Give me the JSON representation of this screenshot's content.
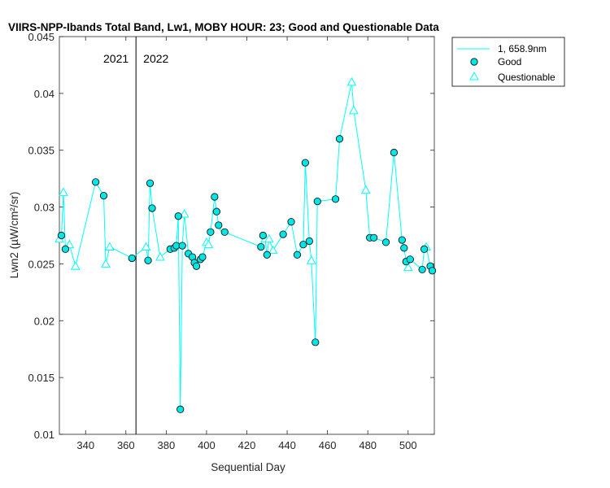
{
  "chart_data": {
    "type": "scatter",
    "title": "VIIRS-NPP-Ibands Total Band, Lw1, MOBY HOUR: 23;  Good and Questionable Data",
    "xlabel": "Sequential Day",
    "ylabel": "Lwn2 (µW/cm²/sr)",
    "xlim": [
      327,
      513
    ],
    "ylim": [
      0.01,
      0.045
    ],
    "xticks": [
      340,
      360,
      380,
      400,
      420,
      440,
      460,
      480,
      500
    ],
    "yticks": [
      0.01,
      0.015,
      0.02,
      0.025,
      0.03,
      0.035,
      0.04,
      0.045
    ],
    "xtick_labels": [
      "340",
      "360",
      "380",
      "400",
      "420",
      "440",
      "460",
      "480",
      "500"
    ],
    "ytick_labels": [
      "0.01",
      "0.015",
      "0.02",
      "0.025",
      "0.03",
      "0.035",
      "0.04",
      "0.045"
    ],
    "grid": false,
    "legend_position": "outside-top-right",
    "colors": {
      "series": "#00ffff",
      "marker_edge": "#000000",
      "good_fill": "#00e5e5",
      "divider": "#000000"
    },
    "divider": {
      "x": 365,
      "left_label": "2021",
      "right_label": "2022"
    },
    "series": [
      {
        "name": "1, 658.9nm",
        "kind": "line",
        "x": [
          327,
          328,
          329,
          330,
          332,
          335,
          345,
          349,
          350,
          352,
          363,
          370,
          371,
          372,
          373,
          377,
          382,
          384,
          385,
          386,
          387,
          388,
          389,
          391,
          393,
          394,
          395,
          397,
          398,
          400,
          401,
          402,
          404,
          405,
          406,
          407,
          409,
          427,
          428,
          429,
          430,
          431,
          433,
          438,
          442,
          445,
          448,
          449,
          451,
          452,
          454,
          455,
          464,
          466,
          472,
          473,
          479,
          481,
          483,
          489,
          493,
          497,
          498,
          499,
          500,
          501,
          507,
          508,
          509,
          511,
          512
        ],
        "y": [
          0.0272,
          0.0275,
          0.0313,
          0.0263,
          0.0267,
          0.0248,
          0.0322,
          0.031,
          0.025,
          0.0265,
          0.0255,
          0.0265,
          0.0253,
          0.0321,
          0.0299,
          0.0256,
          0.0263,
          0.0264,
          0.0266,
          0.0292,
          0.0122,
          0.0266,
          0.0294,
          0.0259,
          0.0256,
          0.0251,
          0.0248,
          0.0254,
          0.0256,
          0.0269,
          0.0267,
          0.0278,
          0.0309,
          0.0296,
          0.0284,
          0.0279,
          0.0278,
          0.0265,
          0.0275,
          0.0272,
          0.0258,
          0.0272,
          0.0262,
          0.0276,
          0.0287,
          0.0258,
          0.0267,
          0.0339,
          0.027,
          0.0253,
          0.0181,
          0.0305,
          0.0307,
          0.036,
          0.041,
          0.0385,
          0.0315,
          0.0273,
          0.0273,
          0.0269,
          0.0348,
          0.0271,
          0.0264,
          0.0252,
          0.0247,
          0.0254,
          0.0245,
          0.0263,
          0.0265,
          0.0248,
          0.0244
        ]
      },
      {
        "name": "Good",
        "kind": "circle",
        "x": [
          328,
          330,
          345,
          349,
          363,
          371,
          372,
          373,
          382,
          384,
          385,
          386,
          387,
          388,
          391,
          393,
          394,
          395,
          397,
          398,
          402,
          404,
          405,
          406,
          409,
          427,
          428,
          430,
          438,
          442,
          445,
          448,
          449,
          451,
          454,
          455,
          464,
          466,
          481,
          483,
          489,
          493,
          497,
          498,
          499,
          501,
          507,
          508,
          511,
          512
        ],
        "y": [
          0.0275,
          0.0263,
          0.0322,
          0.031,
          0.0255,
          0.0253,
          0.0321,
          0.0299,
          0.0263,
          0.0264,
          0.0266,
          0.0292,
          0.0122,
          0.0266,
          0.0259,
          0.0256,
          0.0251,
          0.0248,
          0.0254,
          0.0256,
          0.0278,
          0.0309,
          0.0296,
          0.0284,
          0.0278,
          0.0265,
          0.0275,
          0.0258,
          0.0276,
          0.0287,
          0.0258,
          0.0267,
          0.0339,
          0.027,
          0.0181,
          0.0305,
          0.0307,
          0.036,
          0.0273,
          0.0273,
          0.0269,
          0.0348,
          0.0271,
          0.0264,
          0.0252,
          0.0254,
          0.0245,
          0.0263,
          0.0248,
          0.0244
        ]
      },
      {
        "name": "Questionable",
        "kind": "triangle",
        "x": [
          327,
          329,
          332,
          335,
          350,
          352,
          370,
          377,
          389,
          400,
          401,
          429,
          431,
          433,
          452,
          472,
          473,
          479,
          500,
          509
        ],
        "y": [
          0.0272,
          0.0313,
          0.0267,
          0.0248,
          0.025,
          0.0265,
          0.0265,
          0.0256,
          0.0294,
          0.0269,
          0.0267,
          0.0272,
          0.0272,
          0.0262,
          0.0253,
          0.041,
          0.0385,
          0.0315,
          0.0247,
          0.0265
        ]
      }
    ]
  }
}
